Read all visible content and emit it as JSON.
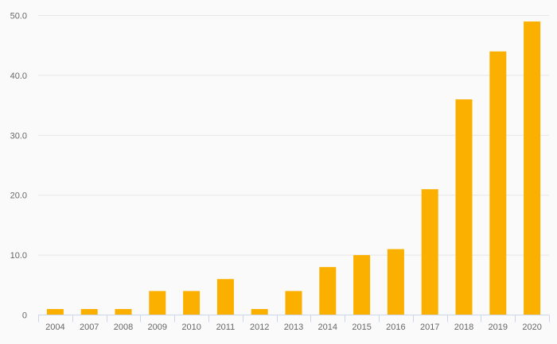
{
  "chart_data": {
    "type": "bar",
    "title": "",
    "xlabel": "",
    "ylabel": "",
    "categories": [
      "2004",
      "2007",
      "2008",
      "2009",
      "2010",
      "2011",
      "2012",
      "2013",
      "2014",
      "2015",
      "2016",
      "2017",
      "2018",
      "2019",
      "2020"
    ],
    "values": [
      1,
      1,
      1,
      4,
      4,
      6,
      1,
      4,
      8,
      10,
      11,
      21,
      36,
      44,
      49
    ],
    "ylim": [
      0,
      50
    ],
    "yticks": [
      0,
      10,
      20,
      30,
      40,
      50
    ],
    "ytick_labels": [
      "0",
      "10.0",
      "20.0",
      "30.0",
      "40.0",
      "50.0"
    ],
    "grid": true,
    "legend": "none",
    "colors": {
      "bar": "#fbb000",
      "grid": "#e6e6e6",
      "axis": "#ccd6eb"
    }
  }
}
